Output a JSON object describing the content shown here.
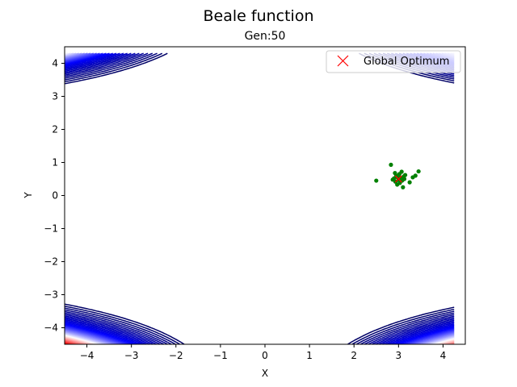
{
  "chart_data": {
    "type": "scatter",
    "title": "Beale function",
    "subtitle": "Gen:50",
    "xlabel": "X",
    "ylabel": "Y",
    "xlim": [
      -4.5,
      4.5
    ],
    "ylim": [
      -4.5,
      4.5
    ],
    "xticks": [
      -4,
      -3,
      -2,
      -1,
      0,
      1,
      2,
      3,
      4
    ],
    "yticks": [
      -4,
      -3,
      -2,
      -1,
      0,
      1,
      2,
      3,
      4
    ],
    "grid": false,
    "legend": {
      "placement": "top-right",
      "entries": [
        {
          "label": "Global Optimum",
          "marker": "x",
          "color": "#ff0000"
        }
      ]
    },
    "background": "contour",
    "contour_colormap": [
      "#000066",
      "#0000ff",
      "#ffffff",
      "#ff0000"
    ],
    "series": [
      {
        "name": "Global Optimum",
        "marker": "x",
        "color": "#ff0000",
        "points": [
          {
            "x": 3.0,
            "y": 0.5
          }
        ]
      },
      {
        "marker": "dot",
        "color": "#008000",
        "points": [
          {
            "x": 2.5,
            "y": 0.45
          },
          {
            "x": 2.83,
            "y": 0.93
          },
          {
            "x": 2.87,
            "y": 0.48
          },
          {
            "x": 2.9,
            "y": 0.52
          },
          {
            "x": 2.93,
            "y": 0.42
          },
          {
            "x": 2.95,
            "y": 0.6
          },
          {
            "x": 2.97,
            "y": 0.33
          },
          {
            "x": 2.98,
            "y": 0.55
          },
          {
            "x": 3.0,
            "y": 0.47
          },
          {
            "x": 3.02,
            "y": 0.65
          },
          {
            "x": 3.03,
            "y": 0.38
          },
          {
            "x": 3.05,
            "y": 0.52
          },
          {
            "x": 3.07,
            "y": 0.72
          },
          {
            "x": 3.08,
            "y": 0.45
          },
          {
            "x": 3.1,
            "y": 0.25
          },
          {
            "x": 3.12,
            "y": 0.58
          },
          {
            "x": 3.13,
            "y": 0.5
          },
          {
            "x": 3.15,
            "y": 0.62
          },
          {
            "x": 3.25,
            "y": 0.4
          },
          {
            "x": 3.32,
            "y": 0.55
          },
          {
            "x": 3.38,
            "y": 0.6
          },
          {
            "x": 3.45,
            "y": 0.73
          },
          {
            "x": 2.92,
            "y": 0.68
          },
          {
            "x": 3.0,
            "y": 0.58
          }
        ]
      }
    ]
  }
}
